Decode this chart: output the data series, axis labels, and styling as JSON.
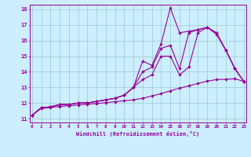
{
  "xlabel": "Windchill (Refroidissement éolien,°C)",
  "bg_color": "#cceeff",
  "line_color": "#990099",
  "grid_color": "#99cccc",
  "x_ticks": [
    0,
    1,
    2,
    3,
    4,
    5,
    6,
    7,
    8,
    9,
    10,
    11,
    12,
    13,
    14,
    15,
    16,
    17,
    18,
    19,
    20,
    21,
    22,
    23
  ],
  "y_ticks": [
    11,
    12,
    13,
    14,
    15,
    16,
    17,
    18
  ],
  "xlim": [
    0,
    23
  ],
  "ylim": [
    11,
    18.3
  ],
  "series1_y": [
    11.2,
    11.7,
    11.75,
    11.9,
    11.9,
    12.0,
    12.0,
    12.1,
    12.2,
    12.3,
    12.5,
    13.0,
    14.7,
    14.4,
    15.8,
    18.1,
    16.5,
    16.6,
    16.7,
    16.85,
    16.4,
    15.4,
    14.2,
    13.35
  ],
  "series2_y": [
    11.2,
    11.7,
    11.75,
    11.9,
    11.9,
    12.0,
    12.0,
    12.1,
    12.2,
    12.3,
    12.5,
    13.0,
    14.0,
    14.3,
    15.5,
    15.7,
    14.2,
    16.5,
    16.7,
    16.85,
    16.5,
    15.4,
    14.2,
    13.35
  ],
  "series3_y": [
    11.2,
    11.7,
    11.75,
    11.9,
    11.9,
    12.0,
    12.0,
    12.1,
    12.2,
    12.3,
    12.5,
    13.0,
    13.5,
    13.8,
    15.0,
    15.0,
    13.8,
    14.3,
    16.5,
    16.85,
    16.5,
    15.4,
    14.2,
    13.35
  ],
  "series4_y": [
    11.2,
    11.65,
    11.7,
    11.78,
    11.82,
    11.87,
    11.92,
    11.96,
    12.02,
    12.08,
    12.14,
    12.2,
    12.3,
    12.45,
    12.6,
    12.78,
    12.95,
    13.1,
    13.25,
    13.4,
    13.5,
    13.52,
    13.55,
    13.38
  ]
}
